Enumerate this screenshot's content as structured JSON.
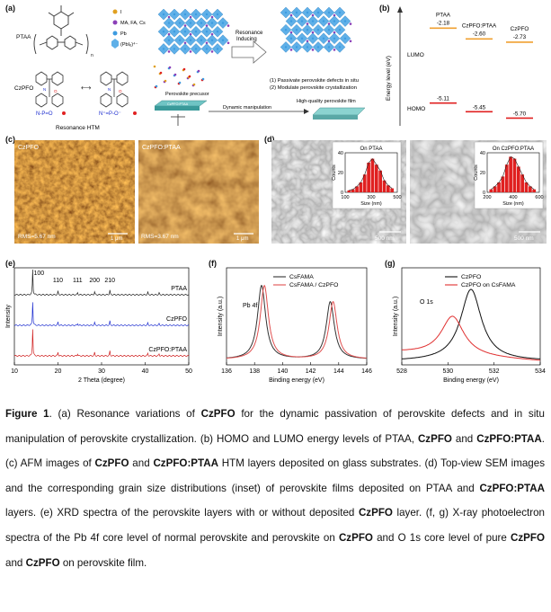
{
  "panel_labels": {
    "a": "(a)",
    "b": "(b)",
    "c": "(c)",
    "d": "(d)",
    "e": "(e)",
    "f": "(f)",
    "g": "(g)"
  },
  "panel_a": {
    "ptaa_label": "PTAA",
    "n_sub": "n",
    "legend": [
      {
        "text": "I",
        "color": "#e0a020"
      },
      {
        "text": "MA, FA, Cs",
        "color": "#8b3fb8"
      },
      {
        "text": "Pb",
        "color": "#3d9be0"
      },
      {
        "text": "(PbI₆)⁴⁻",
        "color": "#5fb0e8"
      }
    ],
    "resonance_label": "Resonance\nInducing",
    "czpfo_label": "CzPFO",
    "resonance_htm": "Resonance HTM",
    "np_o": "N-P=O",
    "np_o_plus": "N⁺=P-O⁻",
    "precursor": "Perovskite precusor",
    "substrate_label": "CzPFO:PTAA",
    "dynamic": "Dynamic manipulation",
    "film": "High-quality perovskite film",
    "note1": "(1) Passivate perovskite defects in situ",
    "note2": "(2) Modulate perovskite crystallization"
  },
  "panel_b": {
    "ylabel": "Energy level (eV)",
    "lumo": "LUMO",
    "homo": "HOMO",
    "materials": [
      {
        "name": "PTAA",
        "lumo": "-2.18",
        "homo": "-5.11"
      },
      {
        "name": "CzPFO:PTAA",
        "lumo": "-2.60",
        "homo": "-5.45"
      },
      {
        "name": "CzPFO",
        "lumo": "-2.73",
        "homo": "-5.70"
      }
    ],
    "lumo_color": "#f0a030",
    "homo_color": "#e02020"
  },
  "panel_c": {
    "left_title": "CzPFO",
    "right_title": "CzPFO:PTAA",
    "left_rms": "RMS=5.67 nm",
    "right_rms": "RMS=3.67 nm",
    "scale": "1 μm"
  },
  "panel_d": {
    "left_title": "On PTAA",
    "right_title": "On CzPFO:PTAA",
    "scale": "500 nm",
    "hist_ylabel": "Counts",
    "hist_xlabel": "Size (nm)"
  },
  "chart_data": [
    {
      "type": "line",
      "title": "",
      "xlabel": "2 Theta (degree)",
      "ylabel": "Intensity",
      "xlim": [
        10,
        50
      ],
      "xticks": [
        10,
        20,
        30,
        40,
        50
      ],
      "series": [
        {
          "name": "PTAA",
          "color": "#222222"
        },
        {
          "name": "CzPFO",
          "color": "#2030d0"
        },
        {
          "name": "CzPFO:PTAA",
          "color": "#d02020"
        }
      ],
      "peak_labels": [
        {
          "text": "100",
          "x": 14.2
        },
        {
          "text": "110",
          "x": 20.0
        },
        {
          "text": "111",
          "x": 24.5
        },
        {
          "text": "200",
          "x": 28.4
        },
        {
          "text": "210",
          "x": 31.9
        }
      ]
    },
    {
      "type": "line",
      "title": "",
      "xlabel": "Binding energy (eV)",
      "ylabel": "Intensity (a.u.)",
      "xlim": [
        136,
        146
      ],
      "xticks": [
        136,
        138,
        140,
        142,
        144,
        146
      ],
      "annotation": "Pb 4f",
      "series": [
        {
          "name": "CsFAMA",
          "color": "#333333",
          "peaks": [
            138.5,
            143.4
          ]
        },
        {
          "name": "CsFAMA / CzPFO",
          "color": "#e05050",
          "peaks": [
            138.7,
            143.6
          ]
        }
      ]
    },
    {
      "type": "line",
      "title": "",
      "xlabel": "Binding energy (eV)",
      "ylabel": "Intensity (a.u.)",
      "xlim": [
        528,
        534
      ],
      "xticks": [
        528,
        530,
        532,
        534
      ],
      "annotation": "O 1s",
      "series": [
        {
          "name": "CzPFO",
          "color": "#111111",
          "peak": 531.0
        },
        {
          "name": "CzPFO on CsFAMA",
          "color": "#e03030",
          "peak": 530.2
        }
      ]
    },
    {
      "type": "bar",
      "title": "On PTAA",
      "xlabel": "Size (nm)",
      "ylabel": "Counts",
      "xlim": [
        100,
        500
      ],
      "ylim": [
        0,
        40
      ],
      "xticks": [
        100,
        300,
        500
      ],
      "yticks": [
        0,
        20,
        40
      ],
      "categories": [
        130,
        160,
        190,
        220,
        250,
        280,
        310,
        340,
        370,
        400,
        430,
        460
      ],
      "values": [
        2,
        3,
        6,
        10,
        18,
        30,
        34,
        28,
        22,
        12,
        7,
        4
      ]
    },
    {
      "type": "bar",
      "title": "On CzPFO:PTAA",
      "xlabel": "Size (nm)",
      "ylabel": "Counts",
      "xlim": [
        200,
        600
      ],
      "ylim": [
        0,
        40
      ],
      "xticks": [
        200,
        400,
        600
      ],
      "yticks": [
        0,
        20,
        40
      ],
      "categories": [
        230,
        260,
        290,
        320,
        350,
        380,
        410,
        440,
        470,
        500,
        530,
        560
      ],
      "values": [
        3,
        6,
        10,
        16,
        28,
        36,
        34,
        26,
        18,
        10,
        6,
        3
      ]
    }
  ],
  "caption": {
    "fig": "Figure 1",
    "t1": ". (a) Resonance variations of ",
    "b1": "CzPFO",
    "t2": " for the dynamic passivation of perovskite defects and in situ manipulation of perovskite crystallization. (b) HOMO and LUMO energy levels of PTAA, ",
    "b2": "CzPFO",
    "t3": " and ",
    "b3": "CzPFO:PTAA",
    "t4": ". (c) AFM images of ",
    "b4": "CzPFO",
    "t5": " and ",
    "b5": "CzPFO:PTAA",
    "t6": " HTM layers deposited on glass substrates. (d) Top-view SEM images and the corresponding grain size distributions (inset) of perovskite films deposited on PTAA and ",
    "b6": "CzPFO:PTAA",
    "t7": " layers. (e) XRD spectra of the perovskite layers with or without deposited ",
    "b7": "CzPFO",
    "t8": " layer. (f, g) X-ray photoelectron spectra of the Pb 4f core level of normal perovskite and perovskite on ",
    "b8": "CzPFO",
    "t9": " and O 1s core level of pure ",
    "b9": "CzPFO",
    "t10": " and ",
    "b10": "CzPFO",
    "t11": " on perovskite film."
  }
}
